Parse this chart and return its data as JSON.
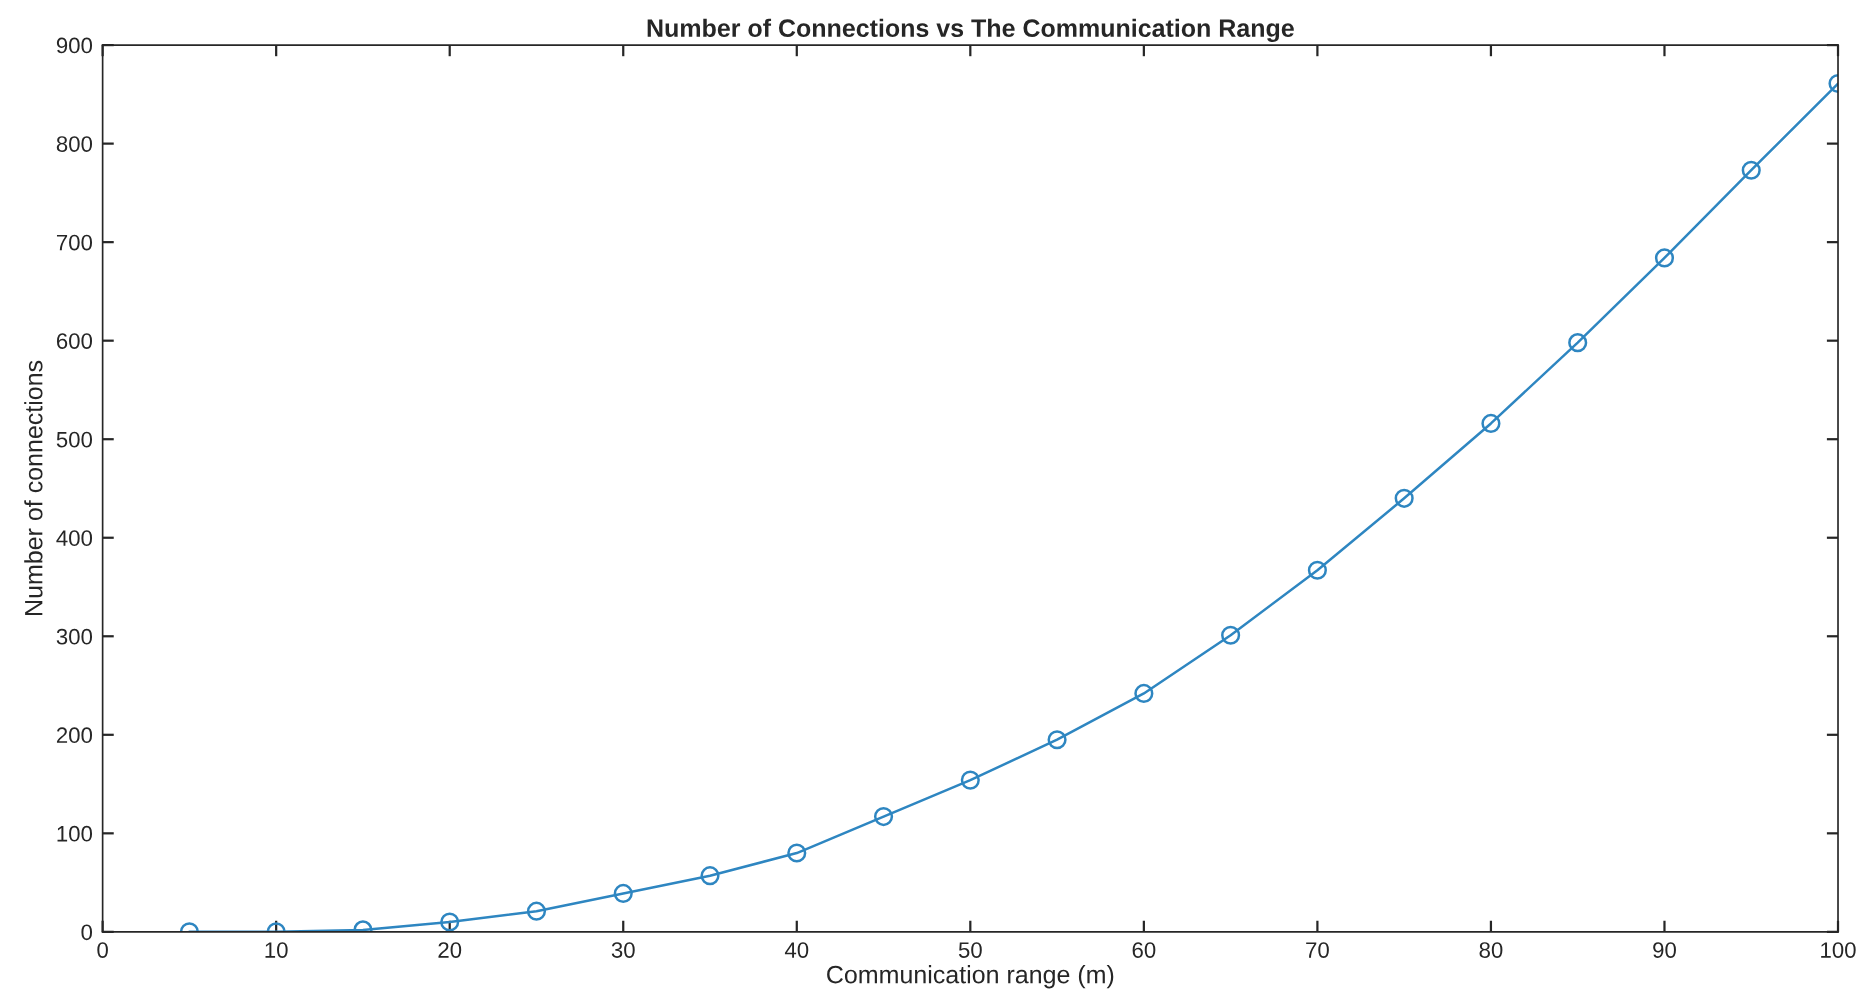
{
  "chart_data": {
    "type": "line",
    "title": "Number of Connections vs The Communication Range",
    "xlabel": "Communication range (m)",
    "ylabel": "Number of connections",
    "x": [
      5,
      10,
      15,
      20,
      25,
      30,
      35,
      40,
      45,
      50,
      55,
      60,
      65,
      70,
      75,
      80,
      85,
      90,
      95,
      100
    ],
    "series": [
      {
        "color": "#2e86c1",
        "values": [
          0,
          0,
          2,
          10,
          21,
          39,
          57,
          80,
          117,
          154,
          195,
          242,
          301,
          367,
          440,
          516,
          598,
          684,
          773,
          861
        ]
      }
    ],
    "xlim": [
      0,
      100
    ],
    "xticks": [
      0,
      10,
      20,
      30,
      40,
      50,
      60,
      70,
      80,
      90,
      100
    ],
    "ylim": [
      0,
      900
    ],
    "yticks": [
      0,
      100,
      200,
      300,
      400,
      500,
      600,
      700,
      800,
      900
    ],
    "grid": false,
    "marker": "circle",
    "line_style": "solid"
  }
}
